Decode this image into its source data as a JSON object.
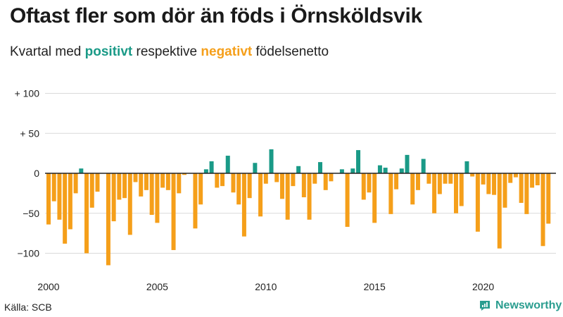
{
  "header": {
    "title": "Oftast fler som dör än föds i Örnsköldsvik",
    "subtitle_prefix": "Kvartal med",
    "subtitle_positive": "positivt",
    "subtitle_middle": "respektive",
    "subtitle_negative": "negativt",
    "subtitle_suffix": "födelsenetto"
  },
  "footer": {
    "source": "Källa: SCB",
    "brand": "Newsworthy"
  },
  "colors": {
    "positive": "#1a9a87",
    "negative": "#f59f1a",
    "grid": "#d9d9d9",
    "axis": "#222222"
  },
  "chart_data": {
    "type": "bar",
    "title": "Oftast fler som dör än föds i Örnsköldsvik",
    "xlabel": "",
    "ylabel": "",
    "ylim": [
      -120,
      110
    ],
    "yticks": [
      100,
      50,
      0,
      -50,
      -100
    ],
    "ytick_labels": [
      "+ 100",
      "+  50",
      "0",
      "−50",
      "−100"
    ],
    "x_start_year": 2000,
    "xticks": [
      2000,
      2005,
      2010,
      2015,
      2020
    ],
    "xtick_labels": [
      "2000",
      "2005",
      "2010",
      "2015",
      "2020"
    ],
    "values": [
      -64,
      -35,
      -58,
      -88,
      -70,
      -25,
      6,
      -100,
      -43,
      -23,
      0,
      -115,
      -60,
      -33,
      -31,
      -77,
      -11,
      -29,
      -21,
      -52,
      -62,
      -18,
      -21,
      -96,
      -25,
      -2,
      0,
      -69,
      -39,
      5,
      15,
      -18,
      -16,
      22,
      -24,
      -39,
      -79,
      -31,
      13,
      -54,
      -13,
      30,
      -11,
      -32,
      -58,
      -16,
      9,
      -30,
      -58,
      -13,
      14,
      -21,
      -10,
      0,
      5,
      -67,
      6,
      29,
      -33,
      -24,
      -62,
      10,
      7,
      -51,
      -20,
      6,
      23,
      -39,
      -21,
      18,
      -13,
      -50,
      -26,
      -13,
      -13,
      -50,
      -41,
      15,
      -4,
      -73,
      -14,
      -26,
      -27,
      -94,
      -43,
      -12,
      -5,
      -37,
      -51,
      -18,
      -15,
      -91,
      -63
    ]
  }
}
